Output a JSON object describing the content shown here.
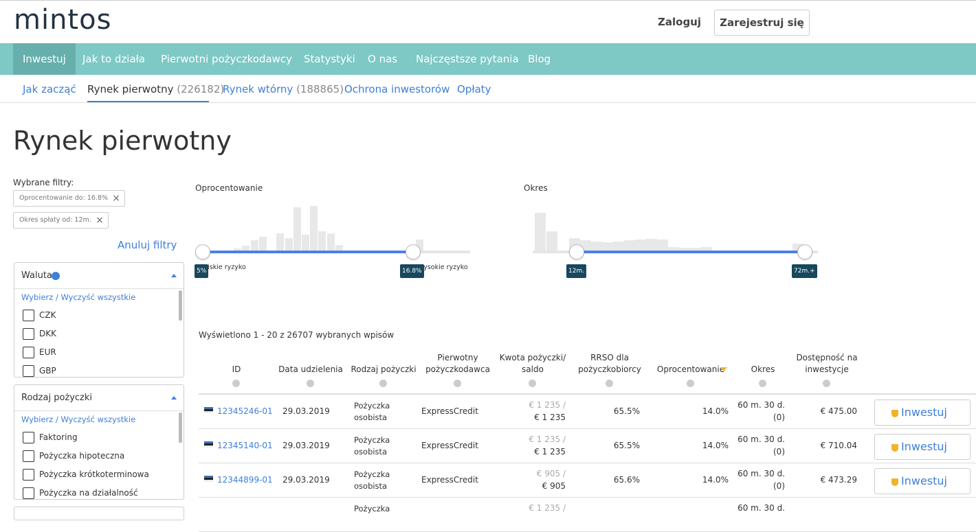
{
  "header": {
    "logo": "mintos",
    "login": "Zaloguj",
    "register": "Zarejestruj się"
  },
  "nav": [
    "Inwestuj",
    "Jak to działa",
    "Pierwotni pożyczkodawcy",
    "Statystyki",
    "O nas",
    "Najczęstsze pytania",
    "Blog"
  ],
  "subnav": [
    {
      "label": "Jak zacząć"
    },
    {
      "label": "Rynek pierwotny",
      "count": "(226182)"
    },
    {
      "label": "Rynek wtórny",
      "count": "(188865)"
    },
    {
      "label": "Ochrona inwestorów"
    },
    {
      "label": "Opłaty"
    }
  ],
  "page_title": "Rynek pierwotny",
  "filters": {
    "label": "Wybrane filtry:",
    "chips": [
      "Oprocentowanie do: 16.8%",
      "Okres spłaty od: 12m."
    ],
    "clear": "Anuluj filtry"
  },
  "panels": [
    {
      "title": "Waluta",
      "select_all": "Wybierz / Wyczyść wszystkie",
      "options": [
        "CZK",
        "DKK",
        "EUR",
        "GBP"
      ]
    },
    {
      "title": "Rodzaj pożyczki",
      "select_all": "Wybierz / Wyczyść wszystkie",
      "options": [
        "Faktoring",
        "Pożyczka hipoteczna",
        "Pożyczka krótkoterminowa",
        "Pożyczka na działalność"
      ]
    }
  ],
  "sliders": [
    {
      "label": "Oprocentowanie",
      "low_text": "Niskie ryzyko",
      "high_text": "Wysokie ryzyko",
      "low": "5%",
      "high": "16.8%"
    },
    {
      "label": "Okres",
      "low": "12m.",
      "high": "72m.+"
    }
  ],
  "table": {
    "summary": "Wyświetlono 1 - 20 z 26707 wybranych wpisów",
    "columns": [
      "ID",
      "Data udzielenia",
      "Rodzaj pożyczki",
      "Pierwotny pożyczkodawca",
      "Kwota pożyczki/ saldo",
      "RRSO dla pożyczkobiorcy",
      "Oprocentowanie",
      "Okres",
      "Dostępność na inwestycje"
    ],
    "rows": [
      {
        "id": "12345246-01",
        "date": "29.03.2019",
        "type": "Pożyczka osobista",
        "originator": "ExpressCredit",
        "amount": "€ 1 235 /",
        "balance": "€ 1 235",
        "rrso": "65.5%",
        "rate": "14.0%",
        "term": "60 m. 30 d.",
        "late": "(0)",
        "available": "€ 475.00",
        "button": "Inwestuj"
      },
      {
        "id": "12345140-01",
        "date": "29.03.2019",
        "type": "Pożyczka osobista",
        "originator": "ExpressCredit",
        "amount": "€ 1 235 /",
        "balance": "€ 1 235",
        "rrso": "65.5%",
        "rate": "14.0%",
        "term": "60 m. 30 d.",
        "late": "(0)",
        "available": "€ 710.04",
        "button": "Inwestuj"
      },
      {
        "id": "12344899-01",
        "date": "29.03.2019",
        "type": "Pożyczka osobista",
        "originator": "ExpressCredit",
        "amount": "€ 905 /",
        "balance": "€ 905",
        "rrso": "65.6%",
        "rate": "14.0%",
        "term": "60 m. 30 d.",
        "late": "(0)",
        "available": "€ 473.29",
        "button": "Inwestuj"
      },
      {
        "type": "Pożyczka",
        "amount": "€ 1 235 /",
        "term": "60 m. 30 d."
      }
    ]
  }
}
